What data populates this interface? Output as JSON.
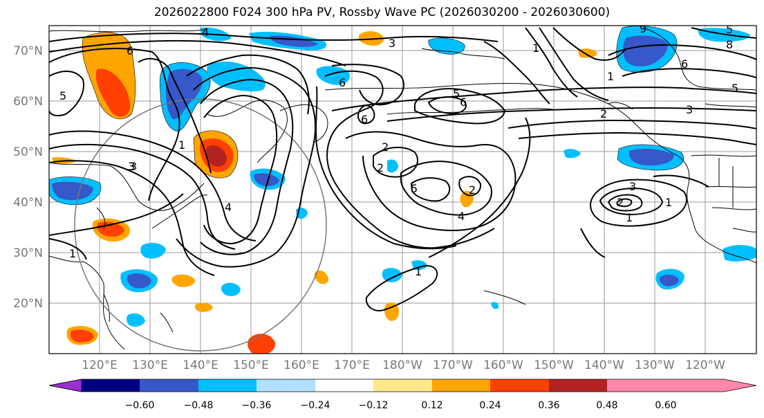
{
  "title": "2026022800 F024 300 hPa PV, Rossby Wave PC (2026030200 - 2026030600)",
  "latitude_labels": [
    "70°N",
    "60°N",
    "50°N",
    "40°N",
    "30°N",
    "20°N"
  ],
  "longitude_labels": [
    "120°E",
    "130°E",
    "140°E",
    "150°E",
    "160°E",
    "170°E",
    "180°W",
    "170°W",
    "160°W",
    "150°W",
    "140°W",
    "130°W",
    "120°W"
  ],
  "colorbar": {
    "ticks": [
      "−0.60",
      "−0.48",
      "−0.36",
      "−0.24",
      "−0.12",
      "0.12",
      "0.24",
      "0.36",
      "0.48",
      "0.60"
    ],
    "colors": [
      "#9b30d0",
      "#00007f",
      "#3658c8",
      "#00bfff",
      "#b0e0ff",
      "#ffffff",
      "#ffe98a",
      "#ffa500",
      "#ff4000",
      "#b22222",
      "#ff88aa"
    ]
  },
  "contour_labels": [
    "6",
    "5",
    "3",
    "4",
    "1",
    "4",
    "6",
    "5",
    "2",
    "2",
    "6",
    "5",
    "4",
    "1",
    "3",
    "1",
    "2",
    "2",
    "1",
    "3",
    "5",
    "6",
    "9",
    "8",
    "6",
    "5",
    "3",
    "2",
    "1",
    "3",
    "1",
    "1"
  ],
  "colors": {
    "frame": "#000000",
    "grid": "#999999",
    "circle": "#777777",
    "land": "#000000"
  }
}
